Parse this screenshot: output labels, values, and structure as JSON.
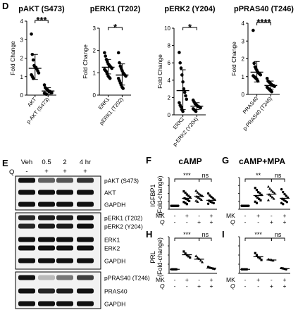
{
  "panels": {
    "D": "D",
    "E": "E",
    "F": "F",
    "G": "G",
    "H": "H",
    "I": "I"
  },
  "western": {
    "timepoints": [
      "Veh",
      "0.5",
      "2",
      "4 hr"
    ],
    "q_label": "Q",
    "q_signs": [
      "-",
      "+",
      "+",
      "+"
    ],
    "blot_groups": [
      {
        "labels": [
          "pAKT (S473)",
          "AKT",
          "GAPDH"
        ]
      },
      {
        "labels": [
          "pERK1 (T202)",
          "pERK2 (Y204)",
          "ERK1",
          "ERK2",
          "GAPDH"
        ]
      },
      {
        "labels": [
          "pPRAS40 (T246)",
          "PRAS40",
          "GAPDH"
        ]
      }
    ]
  },
  "treatment_labels": {
    "mk": "MK",
    "q": "Q"
  },
  "chart_data": [
    {
      "type": "scatter",
      "panel": "D",
      "title": "pAKT (S473)",
      "ylabel": "Fold Change",
      "ylim": [
        0,
        4
      ],
      "yticks": [
        "0",
        "1",
        "2",
        "3",
        "4"
      ],
      "categories": [
        "AKT",
        "p-AKT (S473)"
      ],
      "significance": "***",
      "groups": [
        {
          "values": [
            3.3,
            2.2,
            1.9,
            1.6,
            1.5,
            1.5,
            1.4,
            1.3,
            1.2,
            1.1,
            1.0,
            0.9
          ],
          "mean": 1.45,
          "sd": [
            0.85,
            2.2
          ]
        },
        {
          "values": [
            0.55,
            0.4,
            0.35,
            0.3,
            0.25,
            0.2,
            0.2,
            0.15,
            0.12,
            0.1,
            0.08,
            0.05
          ],
          "mean": 0.22,
          "sd": [
            0.05,
            0.4
          ]
        }
      ]
    },
    {
      "type": "scatter",
      "panel": "D",
      "title": "pERK1 (T202)",
      "ylabel": "Fold Change",
      "ylim": [
        0,
        3
      ],
      "yticks": [
        "0",
        "1",
        "2",
        "3"
      ],
      "categories": [
        "ERK1",
        "pERK1 (T202)"
      ],
      "significance": "*",
      "groups": [
        {
          "values": [
            1.9,
            1.75,
            1.6,
            1.5,
            1.4,
            1.35,
            1.3,
            1.25,
            1.2,
            1.15,
            1.1,
            1.05,
            0.95,
            0.85,
            0.8,
            0.75
          ],
          "mean": 1.25,
          "sd": [
            0.95,
            1.6
          ]
        },
        {
          "values": [
            1.9,
            1.45,
            1.3,
            1.2,
            1.1,
            1.0,
            0.95,
            0.9,
            0.85,
            0.75,
            0.65,
            0.55,
            0.45,
            0.35,
            0.3
          ],
          "mean": 0.9,
          "sd": [
            0.45,
            1.4
          ]
        }
      ]
    },
    {
      "type": "scatter",
      "panel": "D",
      "title": "pERK2 (Y204)",
      "ylabel": "Fold Change",
      "ylim": [
        0,
        10
      ],
      "yticks": [
        "0",
        "2",
        "4",
        "6",
        "8",
        "10"
      ],
      "categories": [
        "ERK2",
        "p-ERK2 (Y204)"
      ],
      "significance": "*",
      "groups": [
        {
          "values": [
            7.2,
            6.0,
            5.4,
            4.6,
            3.8,
            3.0,
            2.6,
            2.2,
            1.8,
            1.4,
            1.1,
            0.9,
            0.6,
            0.4
          ],
          "mean": 2.8,
          "sd": [
            0.6,
            5.2
          ]
        },
        {
          "values": [
            1.7,
            1.5,
            1.3,
            1.2,
            1.1,
            1.0,
            0.95,
            0.9,
            0.8,
            0.7,
            0.6,
            0.5,
            0.4
          ],
          "mean": 1.0,
          "sd": [
            0.6,
            1.4
          ]
        }
      ]
    },
    {
      "type": "scatter",
      "panel": "D",
      "title": "pPRAS40 (T246)",
      "ylabel": "Fold Change",
      "ylim": [
        0,
        4
      ],
      "yticks": [
        "0",
        "1",
        "2",
        "3",
        "4"
      ],
      "categories": [
        "PRAS40",
        "p-PRAS40 (T246)"
      ],
      "significance": "****",
      "groups": [
        {
          "values": [
            3.6,
            1.75,
            1.55,
            1.45,
            1.35,
            1.25,
            1.2,
            1.15,
            1.1,
            1.05,
            1.0,
            0.95,
            0.9,
            0.85,
            0.75
          ],
          "mean": 1.25,
          "sd": [
            0.7,
            1.85
          ]
        },
        {
          "values": [
            0.9,
            0.75,
            0.7,
            0.65,
            0.6,
            0.55,
            0.5,
            0.5,
            0.45,
            0.4,
            0.35,
            0.3,
            0.25,
            0.2,
            0.15
          ],
          "mean": 0.5,
          "sd": [
            0.3,
            0.75
          ]
        }
      ]
    },
    {
      "type": "scatter",
      "panel": "F",
      "title": "cAMP",
      "ylabel": "IGFBP1 (Fold-change)",
      "ylim": [
        0,
        8
      ],
      "mk_signs": [
        "-",
        "+",
        "-",
        "+"
      ],
      "q_signs": [
        "-",
        "-",
        "+",
        "+"
      ],
      "sig_pairs": [
        {
          "from": 0,
          "to": 2,
          "label": "***"
        },
        {
          "from": 2,
          "to": 3,
          "label": "ns"
        }
      ],
      "groups": [
        {
          "values": [
            1.0,
            1.0,
            1.0,
            1.0,
            1.0,
            1.0,
            1.0,
            1.0,
            1.0,
            1.0,
            1.0,
            1.0
          ],
          "mean": 1.0
        },
        {
          "values": [
            5.2,
            4.8,
            4.3,
            3.9,
            3.5,
            3.2,
            3.0,
            2.7,
            2.4,
            2.1,
            1.8,
            1.5
          ],
          "mean": 3.2
        },
        {
          "values": [
            5.4,
            4.9,
            4.5,
            4.2,
            3.9,
            3.7,
            3.4,
            3.1,
            2.8,
            2.5,
            2.2
          ],
          "mean": 3.8
        },
        {
          "values": [
            4.6,
            4.0,
            3.6,
            3.2,
            2.8,
            2.5,
            2.2,
            2.0,
            1.8,
            1.6
          ],
          "mean": 2.6
        }
      ]
    },
    {
      "type": "scatter",
      "panel": "G",
      "title": "cAMP+MPA",
      "ylabel": "",
      "ylim": [
        0,
        8
      ],
      "mk_signs": [
        "-",
        "+",
        "-",
        "+"
      ],
      "q_signs": [
        "-",
        "-",
        "+",
        "+"
      ],
      "sig_pairs": [
        {
          "from": 0,
          "to": 2,
          "label": "**"
        },
        {
          "from": 2,
          "to": 3,
          "label": "ns"
        }
      ],
      "groups": [
        {
          "values": [
            1.0,
            1.0,
            1.0,
            1.0,
            1.0,
            1.0,
            1.0,
            1.0,
            1.0,
            1.0,
            1.0,
            1.0
          ],
          "mean": 1.0
        },
        {
          "values": [
            6.2,
            5.6,
            5.0,
            4.6,
            4.2,
            3.8,
            3.4,
            3.0,
            2.6,
            2.2,
            1.8
          ],
          "mean": 4.0
        },
        {
          "values": [
            6.6,
            6.0,
            5.5,
            5.1,
            4.7,
            4.3,
            3.9,
            3.5,
            3.1,
            2.7
          ],
          "mean": 4.4
        },
        {
          "values": [
            5.8,
            5.0,
            4.4,
            3.9,
            3.4,
            3.0,
            2.7,
            2.4,
            2.1,
            1.8,
            1.5
          ],
          "mean": 3.2
        }
      ]
    },
    {
      "type": "scatter",
      "panel": "H",
      "title": "",
      "ylabel": "PRL (Fold-change)",
      "ylim": [
        0,
        8
      ],
      "mk_signs": [
        "-",
        "+",
        "-",
        "+"
      ],
      "q_signs": [
        "-",
        "-",
        "+",
        "+"
      ],
      "sig_pairs": [
        {
          "from": 0,
          "to": 2,
          "label": "***"
        },
        {
          "from": 2,
          "to": 3,
          "label": "ns"
        }
      ],
      "groups": [
        {
          "values": [
            1.0,
            1.0,
            1.0,
            1.0
          ],
          "mean": 1.0
        },
        {
          "values": [
            5.4,
            4.9,
            4.5,
            4.2,
            3.9
          ],
          "mean": 4.6
        },
        {
          "values": [
            4.3,
            3.9,
            3.6,
            3.2,
            2.8
          ],
          "mean": 3.5
        },
        {
          "values": [
            1.6,
            1.4,
            1.3,
            1.2,
            1.1
          ],
          "mean": 1.3
        }
      ]
    },
    {
      "type": "scatter",
      "panel": "I",
      "title": "",
      "ylabel": "",
      "ylim": [
        0,
        8
      ],
      "mk_signs": [
        "-",
        "+",
        "-",
        "+"
      ],
      "q_signs": [
        "-",
        "-",
        "+",
        "+"
      ],
      "sig_pairs": [
        {
          "from": 0,
          "to": 2,
          "label": "***"
        },
        {
          "from": 2,
          "to": 3,
          "label": "ns"
        }
      ],
      "groups": [
        {
          "values": [
            1.0,
            1.0,
            1.0,
            1.0
          ],
          "mean": 1.0
        },
        {
          "values": [
            5.0,
            4.5,
            4.0,
            3.7,
            3.3
          ],
          "mean": 4.1
        },
        {
          "values": [
            3.5,
            3.4,
            3.3,
            3.2
          ],
          "mean": 3.3
        },
        {
          "values": [
            1.3,
            1.2,
            1.1,
            1.0
          ],
          "mean": 1.15
        }
      ]
    }
  ]
}
